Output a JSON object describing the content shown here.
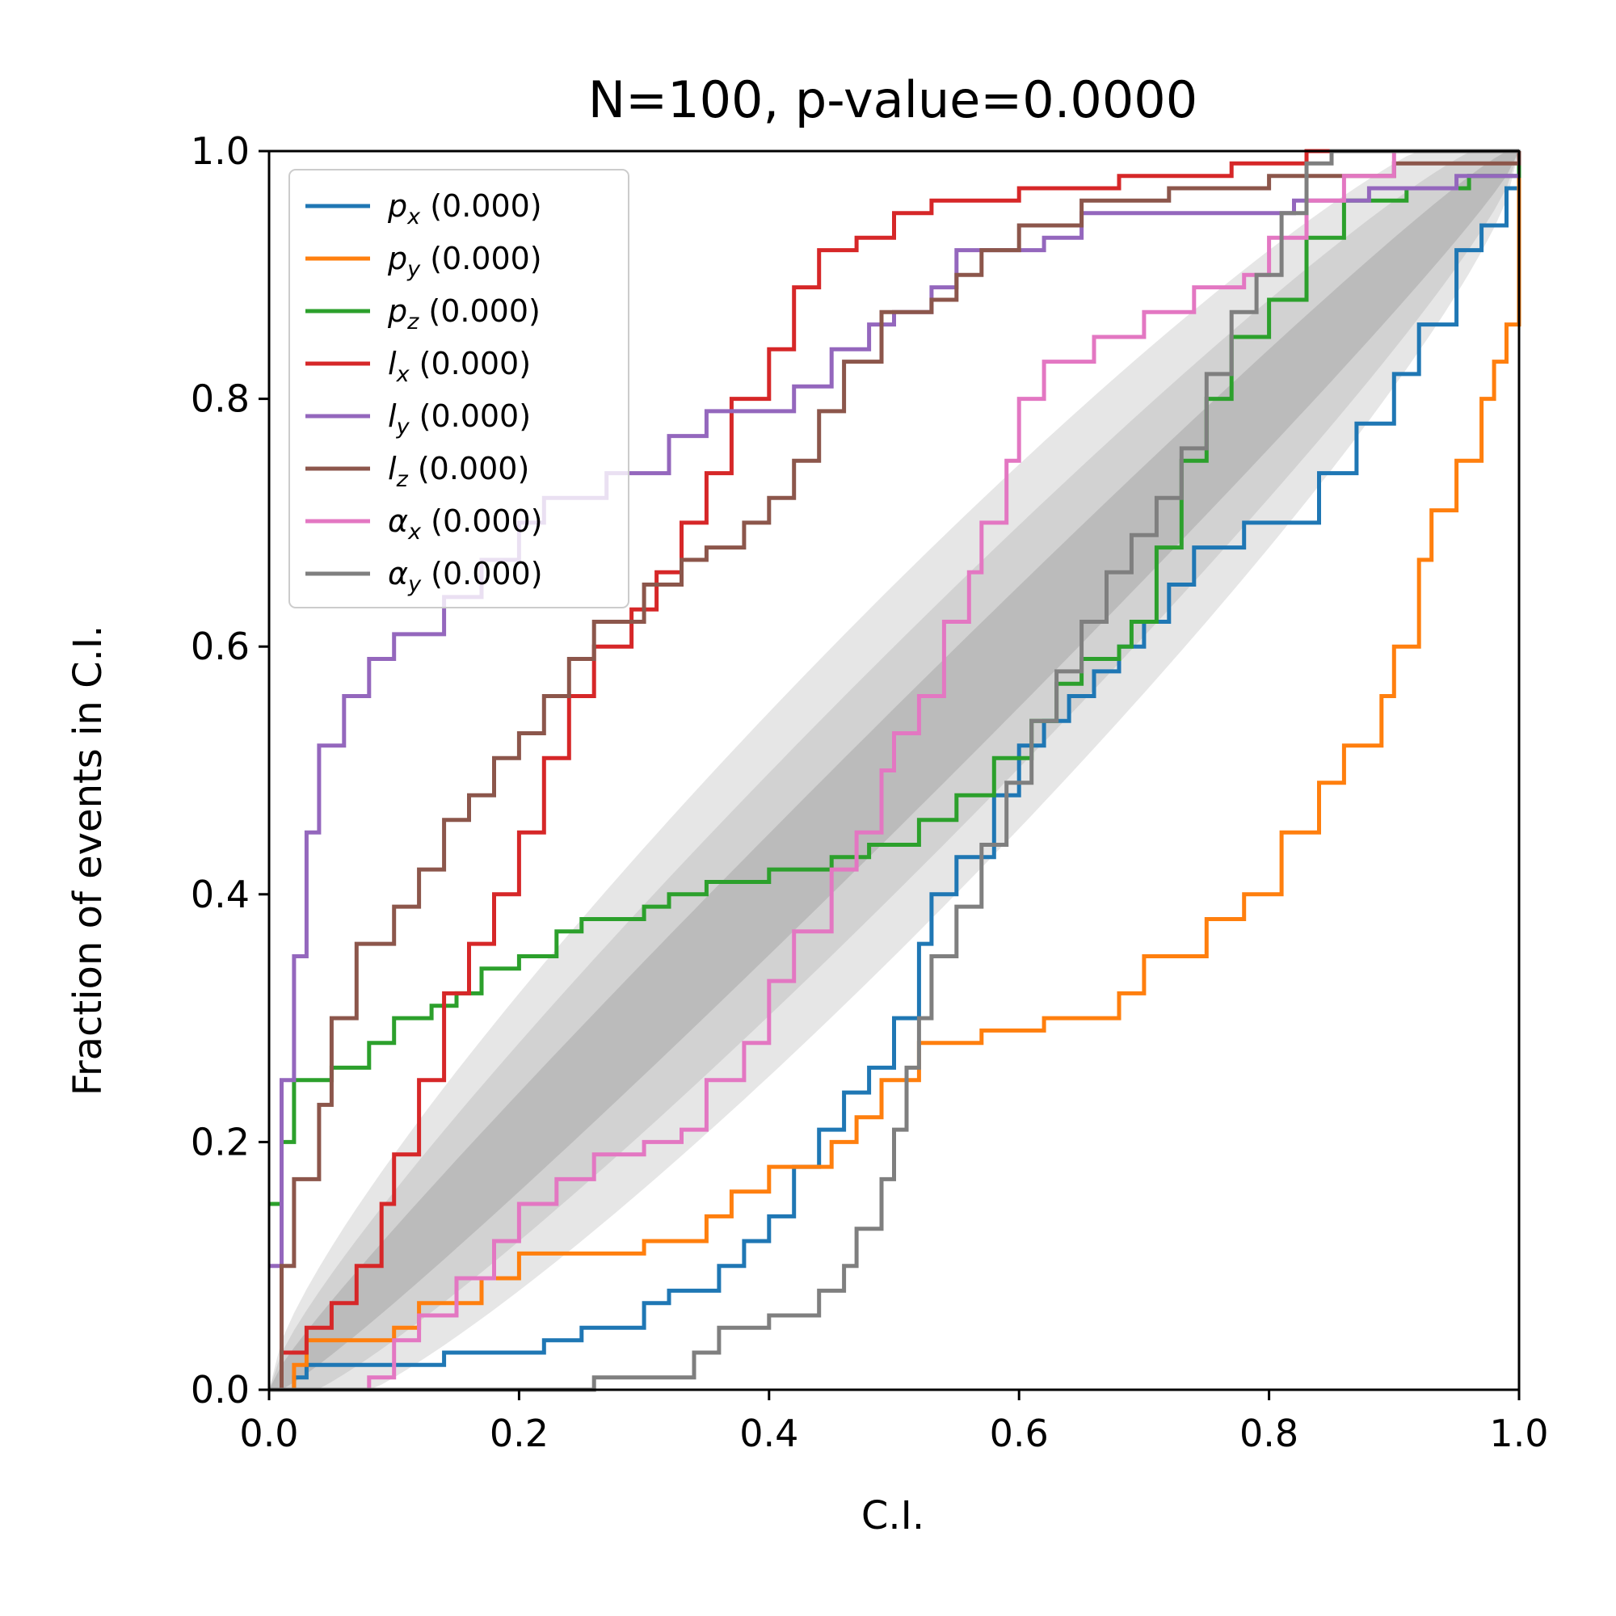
{
  "chart_data": {
    "type": "line",
    "title": "N=100, p-value=0.0000",
    "xlabel": "C.I.",
    "ylabel": "Fraction of events in C.I.",
    "xlim": [
      0,
      1
    ],
    "ylim": [
      0,
      1
    ],
    "xticks": [
      "0.0",
      "0.2",
      "0.4",
      "0.6",
      "0.8",
      "1.0"
    ],
    "yticks": [
      "0.0",
      "0.2",
      "0.4",
      "0.6",
      "0.8",
      "1.0"
    ],
    "grid": false,
    "legend_position": "upper-left",
    "confidence_bands": [
      {
        "level": "outer",
        "color": "#e6e6e6"
      },
      {
        "level": "middle",
        "color": "#d2d2d2"
      },
      {
        "level": "inner",
        "color": "#bbbbbb"
      }
    ],
    "series": [
      {
        "name": "p_x",
        "sym": "p",
        "sub": "x",
        "score": "(0.000)",
        "color": "#1f77b4",
        "points": [
          [
            0,
            0
          ],
          [
            0.02,
            0.01
          ],
          [
            0.03,
            0.02
          ],
          [
            0.14,
            0.03
          ],
          [
            0.22,
            0.04
          ],
          [
            0.25,
            0.05
          ],
          [
            0.3,
            0.07
          ],
          [
            0.32,
            0.08
          ],
          [
            0.36,
            0.1
          ],
          [
            0.38,
            0.12
          ],
          [
            0.4,
            0.14
          ],
          [
            0.42,
            0.18
          ],
          [
            0.44,
            0.21
          ],
          [
            0.46,
            0.24
          ],
          [
            0.48,
            0.26
          ],
          [
            0.5,
            0.3
          ],
          [
            0.52,
            0.36
          ],
          [
            0.53,
            0.4
          ],
          [
            0.55,
            0.43
          ],
          [
            0.58,
            0.48
          ],
          [
            0.6,
            0.52
          ],
          [
            0.62,
            0.54
          ],
          [
            0.64,
            0.56
          ],
          [
            0.66,
            0.58
          ],
          [
            0.68,
            0.6
          ],
          [
            0.7,
            0.62
          ],
          [
            0.72,
            0.65
          ],
          [
            0.74,
            0.68
          ],
          [
            0.78,
            0.7
          ],
          [
            0.84,
            0.74
          ],
          [
            0.87,
            0.78
          ],
          [
            0.9,
            0.82
          ],
          [
            0.92,
            0.86
          ],
          [
            0.95,
            0.92
          ],
          [
            0.97,
            0.94
          ],
          [
            0.99,
            0.97
          ],
          [
            1.0,
            1.0
          ]
        ]
      },
      {
        "name": "p_y",
        "sym": "p",
        "sub": "y",
        "score": "(0.000)",
        "color": "#ff7f0e",
        "points": [
          [
            0,
            0
          ],
          [
            0.02,
            0.02
          ],
          [
            0.03,
            0.04
          ],
          [
            0.1,
            0.05
          ],
          [
            0.12,
            0.07
          ],
          [
            0.17,
            0.09
          ],
          [
            0.2,
            0.11
          ],
          [
            0.3,
            0.12
          ],
          [
            0.35,
            0.14
          ],
          [
            0.37,
            0.16
          ],
          [
            0.4,
            0.18
          ],
          [
            0.45,
            0.2
          ],
          [
            0.47,
            0.22
          ],
          [
            0.49,
            0.25
          ],
          [
            0.52,
            0.28
          ],
          [
            0.57,
            0.29
          ],
          [
            0.62,
            0.3
          ],
          [
            0.66,
            0.3
          ],
          [
            0.68,
            0.32
          ],
          [
            0.7,
            0.35
          ],
          [
            0.75,
            0.38
          ],
          [
            0.78,
            0.4
          ],
          [
            0.81,
            0.45
          ],
          [
            0.84,
            0.49
          ],
          [
            0.86,
            0.52
          ],
          [
            0.89,
            0.56
          ],
          [
            0.9,
            0.6
          ],
          [
            0.92,
            0.67
          ],
          [
            0.93,
            0.71
          ],
          [
            0.95,
            0.75
          ],
          [
            0.97,
            0.8
          ],
          [
            0.98,
            0.83
          ],
          [
            0.99,
            0.86
          ],
          [
            1.0,
            1.0
          ]
        ]
      },
      {
        "name": "p_z",
        "sym": "p",
        "sub": "z",
        "score": "(0.000)",
        "color": "#2ca02c",
        "points": [
          [
            0,
            0.15
          ],
          [
            0.01,
            0.2
          ],
          [
            0.02,
            0.25
          ],
          [
            0.05,
            0.26
          ],
          [
            0.08,
            0.28
          ],
          [
            0.1,
            0.3
          ],
          [
            0.13,
            0.31
          ],
          [
            0.15,
            0.32
          ],
          [
            0.17,
            0.34
          ],
          [
            0.2,
            0.35
          ],
          [
            0.23,
            0.37
          ],
          [
            0.25,
            0.38
          ],
          [
            0.3,
            0.39
          ],
          [
            0.32,
            0.4
          ],
          [
            0.35,
            0.41
          ],
          [
            0.4,
            0.42
          ],
          [
            0.45,
            0.43
          ],
          [
            0.48,
            0.44
          ],
          [
            0.52,
            0.46
          ],
          [
            0.55,
            0.48
          ],
          [
            0.58,
            0.51
          ],
          [
            0.61,
            0.54
          ],
          [
            0.63,
            0.57
          ],
          [
            0.65,
            0.59
          ],
          [
            0.68,
            0.6
          ],
          [
            0.69,
            0.62
          ],
          [
            0.71,
            0.68
          ],
          [
            0.73,
            0.75
          ],
          [
            0.75,
            0.8
          ],
          [
            0.77,
            0.85
          ],
          [
            0.8,
            0.88
          ],
          [
            0.83,
            0.93
          ],
          [
            0.86,
            0.96
          ],
          [
            0.91,
            0.97
          ],
          [
            0.96,
            0.98
          ],
          [
            1.0,
            1.0
          ]
        ]
      },
      {
        "name": "l_x",
        "sym": "l",
        "sub": "x",
        "score": "(0.000)",
        "color": "#d62728",
        "points": [
          [
            0,
            0
          ],
          [
            0.01,
            0.03
          ],
          [
            0.03,
            0.05
          ],
          [
            0.05,
            0.07
          ],
          [
            0.07,
            0.1
          ],
          [
            0.09,
            0.15
          ],
          [
            0.1,
            0.19
          ],
          [
            0.12,
            0.25
          ],
          [
            0.14,
            0.32
          ],
          [
            0.16,
            0.36
          ],
          [
            0.18,
            0.4
          ],
          [
            0.2,
            0.45
          ],
          [
            0.22,
            0.51
          ],
          [
            0.24,
            0.56
          ],
          [
            0.26,
            0.6
          ],
          [
            0.29,
            0.63
          ],
          [
            0.31,
            0.66
          ],
          [
            0.33,
            0.7
          ],
          [
            0.35,
            0.74
          ],
          [
            0.37,
            0.8
          ],
          [
            0.4,
            0.84
          ],
          [
            0.42,
            0.89
          ],
          [
            0.44,
            0.92
          ],
          [
            0.47,
            0.93
          ],
          [
            0.5,
            0.95
          ],
          [
            0.53,
            0.96
          ],
          [
            0.6,
            0.97
          ],
          [
            0.68,
            0.98
          ],
          [
            0.77,
            0.99
          ],
          [
            0.83,
            1.0
          ],
          [
            1.0,
            1.0
          ]
        ]
      },
      {
        "name": "l_y",
        "sym": "l",
        "sub": "y",
        "score": "(0.000)",
        "color": "#9467bd",
        "points": [
          [
            0,
            0.1
          ],
          [
            0.01,
            0.25
          ],
          [
            0.02,
            0.35
          ],
          [
            0.03,
            0.45
          ],
          [
            0.04,
            0.52
          ],
          [
            0.06,
            0.56
          ],
          [
            0.08,
            0.59
          ],
          [
            0.1,
            0.61
          ],
          [
            0.14,
            0.64
          ],
          [
            0.17,
            0.67
          ],
          [
            0.2,
            0.7
          ],
          [
            0.22,
            0.72
          ],
          [
            0.27,
            0.74
          ],
          [
            0.32,
            0.77
          ],
          [
            0.35,
            0.79
          ],
          [
            0.42,
            0.81
          ],
          [
            0.45,
            0.84
          ],
          [
            0.48,
            0.86
          ],
          [
            0.5,
            0.87
          ],
          [
            0.53,
            0.89
          ],
          [
            0.55,
            0.92
          ],
          [
            0.62,
            0.93
          ],
          [
            0.65,
            0.95
          ],
          [
            0.78,
            0.95
          ],
          [
            0.82,
            0.96
          ],
          [
            0.88,
            0.97
          ],
          [
            0.95,
            0.98
          ],
          [
            1.0,
            0.98
          ]
        ]
      },
      {
        "name": "l_z",
        "sym": "l",
        "sub": "z",
        "score": "(0.000)",
        "color": "#8c564b",
        "points": [
          [
            0,
            0
          ],
          [
            0.01,
            0.1
          ],
          [
            0.02,
            0.17
          ],
          [
            0.04,
            0.23
          ],
          [
            0.05,
            0.3
          ],
          [
            0.07,
            0.36
          ],
          [
            0.1,
            0.39
          ],
          [
            0.12,
            0.42
          ],
          [
            0.14,
            0.46
          ],
          [
            0.16,
            0.48
          ],
          [
            0.18,
            0.51
          ],
          [
            0.2,
            0.53
          ],
          [
            0.22,
            0.56
          ],
          [
            0.24,
            0.59
          ],
          [
            0.26,
            0.62
          ],
          [
            0.3,
            0.65
          ],
          [
            0.33,
            0.67
          ],
          [
            0.35,
            0.68
          ],
          [
            0.38,
            0.7
          ],
          [
            0.4,
            0.72
          ],
          [
            0.42,
            0.75
          ],
          [
            0.44,
            0.79
          ],
          [
            0.46,
            0.83
          ],
          [
            0.49,
            0.87
          ],
          [
            0.53,
            0.88
          ],
          [
            0.55,
            0.9
          ],
          [
            0.57,
            0.92
          ],
          [
            0.6,
            0.94
          ],
          [
            0.65,
            0.96
          ],
          [
            0.72,
            0.97
          ],
          [
            0.8,
            0.98
          ],
          [
            0.9,
            0.99
          ],
          [
            1.0,
            1.0
          ]
        ]
      },
      {
        "name": "α_x",
        "sym": "α",
        "sub": "x",
        "score": "(0.000)",
        "color": "#e377c2",
        "points": [
          [
            0,
            0
          ],
          [
            0.04,
            0
          ],
          [
            0.08,
            0.01
          ],
          [
            0.1,
            0.04
          ],
          [
            0.12,
            0.06
          ],
          [
            0.15,
            0.09
          ],
          [
            0.18,
            0.12
          ],
          [
            0.2,
            0.15
          ],
          [
            0.23,
            0.17
          ],
          [
            0.26,
            0.19
          ],
          [
            0.3,
            0.2
          ],
          [
            0.33,
            0.21
          ],
          [
            0.35,
            0.25
          ],
          [
            0.38,
            0.28
          ],
          [
            0.4,
            0.33
          ],
          [
            0.42,
            0.37
          ],
          [
            0.45,
            0.42
          ],
          [
            0.47,
            0.45
          ],
          [
            0.49,
            0.5
          ],
          [
            0.5,
            0.53
          ],
          [
            0.52,
            0.56
          ],
          [
            0.54,
            0.62
          ],
          [
            0.56,
            0.66
          ],
          [
            0.57,
            0.7
          ],
          [
            0.59,
            0.75
          ],
          [
            0.6,
            0.8
          ],
          [
            0.62,
            0.83
          ],
          [
            0.66,
            0.85
          ],
          [
            0.7,
            0.87
          ],
          [
            0.74,
            0.89
          ],
          [
            0.78,
            0.9
          ],
          [
            0.8,
            0.93
          ],
          [
            0.83,
            0.96
          ],
          [
            0.86,
            0.98
          ],
          [
            0.9,
            1.0
          ],
          [
            1.0,
            1.0
          ]
        ]
      },
      {
        "name": "α_y",
        "sym": "α",
        "sub": "y",
        "score": "(0.000)",
        "color": "#7f7f7f",
        "points": [
          [
            0,
            0
          ],
          [
            0.23,
            0
          ],
          [
            0.26,
            0.01
          ],
          [
            0.32,
            0.01
          ],
          [
            0.34,
            0.03
          ],
          [
            0.36,
            0.05
          ],
          [
            0.4,
            0.06
          ],
          [
            0.44,
            0.08
          ],
          [
            0.46,
            0.1
          ],
          [
            0.47,
            0.13
          ],
          [
            0.49,
            0.17
          ],
          [
            0.5,
            0.21
          ],
          [
            0.51,
            0.26
          ],
          [
            0.52,
            0.3
          ],
          [
            0.53,
            0.35
          ],
          [
            0.55,
            0.39
          ],
          [
            0.57,
            0.44
          ],
          [
            0.59,
            0.49
          ],
          [
            0.61,
            0.54
          ],
          [
            0.63,
            0.58
          ],
          [
            0.65,
            0.62
          ],
          [
            0.67,
            0.66
          ],
          [
            0.69,
            0.69
          ],
          [
            0.71,
            0.72
          ],
          [
            0.73,
            0.76
          ],
          [
            0.75,
            0.82
          ],
          [
            0.77,
            0.87
          ],
          [
            0.79,
            0.9
          ],
          [
            0.81,
            0.95
          ],
          [
            0.83,
            0.99
          ],
          [
            0.85,
            1.0
          ],
          [
            1.0,
            1.0
          ]
        ]
      }
    ]
  }
}
